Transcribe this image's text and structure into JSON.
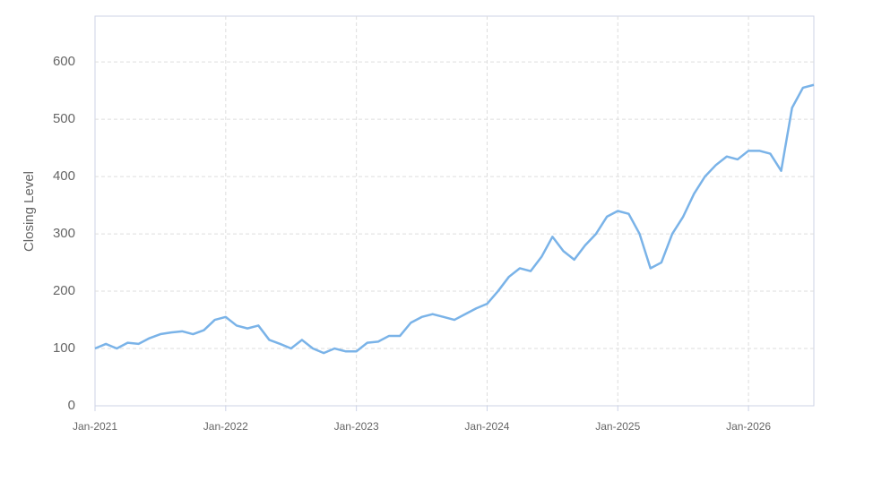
{
  "chart_data": {
    "type": "line",
    "y_label": "Closing Level",
    "x": [
      "2021-01",
      "2021-02",
      "2021-03",
      "2021-04",
      "2021-05",
      "2021-06",
      "2021-07",
      "2021-08",
      "2021-09",
      "2021-10",
      "2021-11",
      "2021-12",
      "2022-01",
      "2022-02",
      "2022-03",
      "2022-04",
      "2022-05",
      "2022-06",
      "2022-07",
      "2022-08",
      "2022-09",
      "2022-10",
      "2022-11",
      "2022-12",
      "2023-01",
      "2023-02",
      "2023-03",
      "2023-04",
      "2023-05",
      "2023-06",
      "2023-07",
      "2023-08",
      "2023-09",
      "2023-10",
      "2023-11",
      "2023-12",
      "2024-01",
      "2024-02",
      "2024-03",
      "2024-04",
      "2024-05",
      "2024-06",
      "2024-07",
      "2024-08",
      "2024-09",
      "2024-10",
      "2024-11",
      "2024-12",
      "2025-01",
      "2025-02",
      "2025-03",
      "2025-04",
      "2025-05",
      "2025-06",
      "2025-07",
      "2025-08",
      "2025-09",
      "2025-10",
      "2025-11",
      "2025-12",
      "2026-01",
      "2026-02",
      "2026-03",
      "2026-04",
      "2026-05",
      "2026-06",
      "2026-07"
    ],
    "series": [
      {
        "name": "Closing Level",
        "color": "#7ab3e8",
        "values": [
          100,
          108,
          100,
          110,
          108,
          118,
          125,
          128,
          130,
          125,
          132,
          150,
          155,
          140,
          135,
          140,
          115,
          108,
          100,
          115,
          100,
          92,
          100,
          95,
          95,
          110,
          112,
          122,
          122,
          145,
          155,
          160,
          155,
          150,
          160,
          170,
          178,
          200,
          225,
          240,
          235,
          260,
          295,
          270,
          255,
          280,
          300,
          330,
          340,
          335,
          300,
          240,
          250,
          300,
          330,
          370,
          400,
          420,
          435,
          430,
          445,
          445,
          440,
          410,
          520,
          555,
          560
        ]
      }
    ],
    "xlim": [
      "2021-01",
      "2026-07"
    ],
    "xticks": [
      {
        "value": "2021-01",
        "label": "Jan-2021"
      },
      {
        "value": "2022-01",
        "label": "Jan-2022"
      },
      {
        "value": "2023-01",
        "label": "Jan-2023"
      },
      {
        "value": "2024-01",
        "label": "Jan-2024"
      },
      {
        "value": "2025-01",
        "label": "Jan-2025"
      },
      {
        "value": "2026-01",
        "label": "Jan-2026"
      }
    ],
    "ylim": [
      0,
      680
    ],
    "yticks": [
      0,
      100,
      200,
      300,
      400,
      500,
      600
    ],
    "grid": true
  }
}
